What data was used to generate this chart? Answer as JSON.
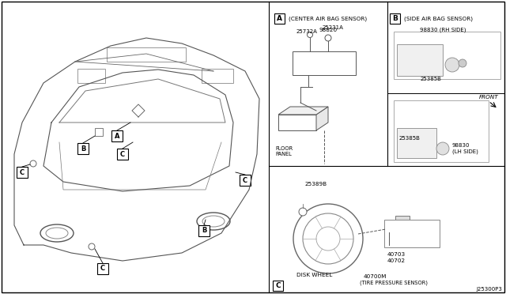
{
  "bg_color": "#ffffff",
  "text_color": "#000000",
  "fig_width": 6.4,
  "fig_height": 3.72,
  "section_A_label": "A",
  "section_A_title": "(CENTER AIR BAG SENSOR)",
  "section_B_label": "B",
  "section_B_title": "(SIDE AIR BAG SENSOR)",
  "section_C_label": "C",
  "part_98820": "98820",
  "part_25732A": "25732A",
  "part_25231A": "25231A",
  "floor_panel": "FLOOR\nPANEL",
  "part_98830_rh": "98830 (RH SIDE)",
  "part_25385B": "25385B",
  "part_98830_lh": "98830\n(LH SIDE)",
  "front_label": "FRONT",
  "part_25389B": "25389B",
  "part_40703": "40703",
  "part_40702": "40702",
  "disk_wheel": "DISK WHEEL",
  "part_40700M": "40700M",
  "tire_pressure": "(TIRE PRESSURE SENSOR)",
  "watermark": "J25300P3"
}
